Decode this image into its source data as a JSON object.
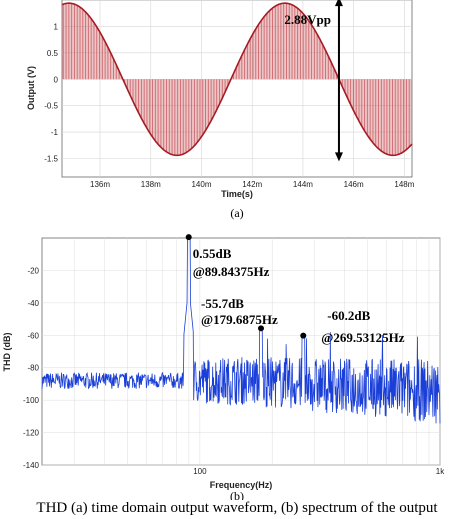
{
  "chart_data": [
    {
      "type": "line",
      "panel": "(a)",
      "xlabel": "Time(s)",
      "ylabel": "Output (V)",
      "xlim": [
        134.5,
        148.3
      ],
      "ylim": [
        -1.85,
        1.5
      ],
      "x_ticks": [
        {
          "v": 136,
          "label": "136m"
        },
        {
          "v": 138,
          "label": "138m"
        },
        {
          "v": 140,
          "label": "140m"
        },
        {
          "v": 142,
          "label": "142m"
        },
        {
          "v": 144,
          "label": "144m"
        },
        {
          "v": 146,
          "label": "146m"
        },
        {
          "v": 148,
          "label": "148m"
        }
      ],
      "y_ticks": [
        {
          "v": 1.5,
          "label": "1.5"
        },
        {
          "v": 1,
          "label": "1"
        },
        {
          "v": 0.5,
          "label": "0.5"
        },
        {
          "v": 0,
          "label": "0"
        },
        {
          "v": -0.5,
          "label": "-0.5"
        },
        {
          "v": -1,
          "label": "-1"
        },
        {
          "v": -1.5,
          "label": "-1.5"
        }
      ],
      "series": [
        {
          "amplitude": 1.44,
          "period": 8.52,
          "zero_crossing": 145.42,
          "offset": 0,
          "color": "#a51c24",
          "fill_color": "#c9585e"
        }
      ],
      "annotation": {
        "text": "2.88Vpp",
        "x": 145.42,
        "y_top": 1.44,
        "y_bottom": -1.44
      },
      "caption": "(a)",
      "grid": true
    },
    {
      "type": "line",
      "panel": "(b)",
      "xlabel": "Frequency(Hz)",
      "ylabel": "THD (dB)",
      "x_scale": "log",
      "xlim": [
        22,
        1000
      ],
      "ylim": [
        -140,
        0
      ],
      "x_ticks": [
        {
          "v": 100,
          "label": "100"
        },
        {
          "v": 1000,
          "label": "1k"
        }
      ],
      "y_ticks": [
        {
          "v": -20,
          "label": "-20"
        },
        {
          "v": -40,
          "label": "-40"
        },
        {
          "v": -60,
          "label": "-60"
        },
        {
          "v": -80,
          "label": "-80"
        },
        {
          "v": -100,
          "label": "-100"
        },
        {
          "v": -120,
          "label": "-120"
        },
        {
          "v": -140,
          "label": "-140"
        }
      ],
      "peaks": [
        {
          "freq": 89.84375,
          "db": 0.55,
          "label1": "0.55dB",
          "label2": "@89.84375Hz"
        },
        {
          "freq": 179.6875,
          "db": -55.7,
          "label1": "-55.7dB",
          "label2": "@179.6875Hz"
        },
        {
          "freq": 269.53125,
          "db": -60.2,
          "label1": "-60.2dB",
          "label2": "@269.53125Hz"
        }
      ],
      "noise_floor_db": -88,
      "color": "#1a3fd8",
      "caption": "(b)",
      "grid": true
    }
  ],
  "bottom_text": "THD (a) time domain output waveform, (b) spectrum of the output"
}
